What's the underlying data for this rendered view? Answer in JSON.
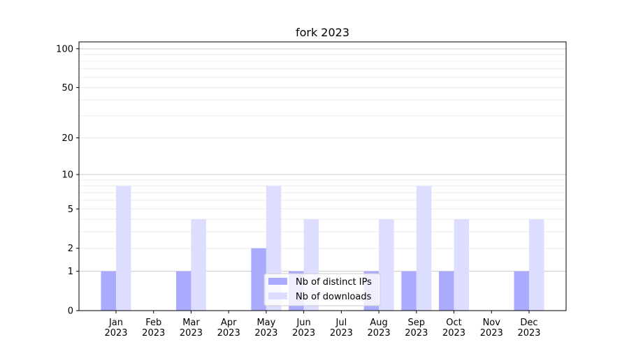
{
  "chart_data": {
    "type": "bar",
    "title": "fork 2023",
    "xlabel": "",
    "ylabel": "",
    "yscale": "log1p",
    "ylim": [
      0,
      113
    ],
    "yticks": [
      0,
      1,
      2,
      5,
      10,
      20,
      50,
      100
    ],
    "grid": true,
    "legend_placement": "lower-center",
    "categories": [
      "Jan\n2023",
      "Feb\n2023",
      "Mar\n2023",
      "Apr\n2023",
      "May\n2023",
      "Jun\n2023",
      "Jul\n2023",
      "Aug\n2023",
      "Sep\n2023",
      "Oct\n2023",
      "Nov\n2023",
      "Dec\n2023"
    ],
    "series": [
      {
        "name": "Nb of distinct IPs",
        "color": "#aaaaff",
        "values": [
          1,
          0,
          1,
          0,
          2,
          1,
          0,
          1,
          1,
          1,
          0,
          1
        ]
      },
      {
        "name": "Nb of downloads",
        "color": "#ddddff",
        "values": [
          8,
          0,
          4,
          0,
          8,
          4,
          0,
          4,
          8,
          4,
          0,
          4
        ]
      }
    ]
  }
}
